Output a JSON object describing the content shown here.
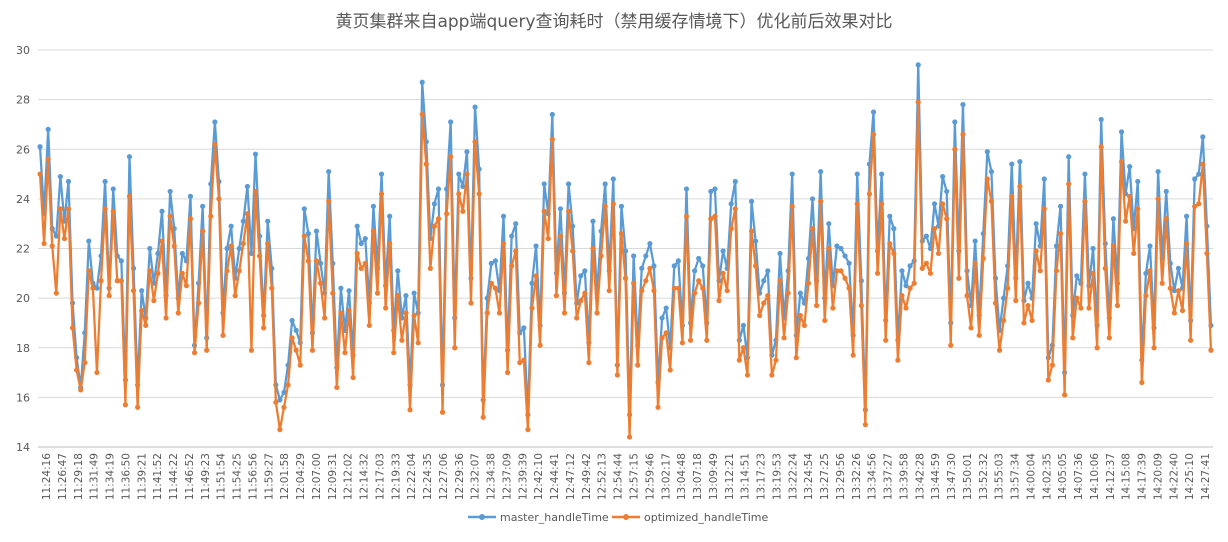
{
  "chart_data": {
    "type": "line",
    "title": "黄页集群来自app端query查询耗时（禁用缓存情境下）优化前后效果对比",
    "xlabel": "",
    "ylabel": "",
    "ylim": [
      14,
      30
    ],
    "y_ticks": [
      "14",
      "16",
      "18",
      "20",
      "22",
      "24",
      "26",
      "28",
      "30"
    ],
    "grid": "horizontal",
    "legend_position": "bottom",
    "x_tick_labels": [
      "11:24:16",
      "11:26:47",
      "11:29:18",
      "11:31:49",
      "11:34:19",
      "11:36:50",
      "11:39:21",
      "11:41:52",
      "11:44:22",
      "11:46:52",
      "11:49:23",
      "11:51:54",
      "11:54:25",
      "11:56:56",
      "11:59:27",
      "12:01:58",
      "12:04:29",
      "12:07:00",
      "12:09:31",
      "12:12:02",
      "12:14:32",
      "12:17:03",
      "12:19:33",
      "12:22:04",
      "12:24:35",
      "12:27:06",
      "12:29:36",
      "12:32:07",
      "12:34:38",
      "12:37:09",
      "12:39:39",
      "12:42:10",
      "12:44:41",
      "12:47:12",
      "12:49:42",
      "12:52:13",
      "12:54:44",
      "12:57:15",
      "12:59:46",
      "13:02:17",
      "13:04:48",
      "13:07:18",
      "13:09:49",
      "13:12:21",
      "13:14:51",
      "13:17:23",
      "13:19:53",
      "13:22:24",
      "13:24:54",
      "13:27:25",
      "13:29:56",
      "13:32:26",
      "13:34:56",
      "13:37:27",
      "13:39:58",
      "13:42:28",
      "13:44:59",
      "13:47:30",
      "13:50:01",
      "13:52:32",
      "13:55:03",
      "13:57:34",
      "14:00:04",
      "14:02:35",
      "14:05:05",
      "14:07:36",
      "14:10:06",
      "14:12:37",
      "14:15:08",
      "14:17:39",
      "14:20:09",
      "14:22:40",
      "14:25:10",
      "14:27:41"
    ],
    "series": [
      {
        "name": "master_handleTime",
        "color": "#5B9BD5",
        "values": [
          26.1,
          23.4,
          26.8,
          22.8,
          22.5,
          24.9,
          23.1,
          24.7,
          19.8,
          17.6,
          16.4,
          18.6,
          22.3,
          20.6,
          20.4,
          21.7,
          24.7,
          20.4,
          24.4,
          21.7,
          21.5,
          16.7,
          25.7,
          21.2,
          16.5,
          20.3,
          19.2,
          22.0,
          20.6,
          21.8,
          23.5,
          20.1,
          24.3,
          22.8,
          20.0,
          21.8,
          21.5,
          24.1,
          18.1,
          20.6,
          23.7,
          18.4,
          24.6,
          27.1,
          24.7,
          19.4,
          22.0,
          22.9,
          20.8,
          22.0,
          23.1,
          24.5,
          21.8,
          25.8,
          22.5,
          19.3,
          23.1,
          21.2,
          16.5,
          15.9,
          16.2,
          17.3,
          19.1,
          18.7,
          18.2,
          23.6,
          22.6,
          18.6,
          22.7,
          21.4,
          20.2,
          25.1,
          21.4,
          17.2,
          20.4,
          18.7,
          20.3,
          17.7,
          22.9,
          22.2,
          22.4,
          19.8,
          23.7,
          21.2,
          25.0,
          20.5,
          23.3,
          18.7,
          21.1,
          19.2,
          20.1,
          16.5,
          20.2,
          19.4,
          28.7,
          26.3,
          22.4,
          23.8,
          24.4,
          16.5,
          24.4,
          27.1,
          19.2,
          25.0,
          24.5,
          25.9,
          20.8,
          27.7,
          25.2,
          15.9,
          20.0,
          21.4,
          21.5,
          20.3,
          23.3,
          17.9,
          22.5,
          23.0,
          18.6,
          18.8,
          15.3,
          20.6,
          22.1,
          18.9,
          24.6,
          23.4,
          27.4,
          21.0,
          23.6,
          20.2,
          24.6,
          22.9,
          19.8,
          20.9,
          21.1,
          18.2,
          23.1,
          20.2,
          22.7,
          24.6,
          21.1,
          24.8,
          17.3,
          23.7,
          21.9,
          15.3,
          21.7,
          18.1,
          21.2,
          21.7,
          22.2,
          21.3,
          16.6,
          19.2,
          19.6,
          18.0,
          21.3,
          21.5,
          18.9,
          24.4,
          19.0,
          21.1,
          21.6,
          21.3,
          19.0,
          24.3,
          24.4,
          20.7,
          21.9,
          21.2,
          23.8,
          24.7,
          18.3,
          18.9,
          17.6,
          23.9,
          22.3,
          20.2,
          20.7,
          21.1,
          17.7,
          18.3,
          21.8,
          19.2,
          21.1,
          25.0,
          18.5,
          20.2,
          19.8,
          21.6,
          24.0,
          20.7,
          25.1,
          20.0,
          23.0,
          20.5,
          22.1,
          22.0,
          21.7,
          21.4,
          18.5,
          25.0,
          20.7,
          15.5,
          25.4,
          27.5,
          21.9,
          25.0,
          19.1,
          23.3,
          22.8,
          18.3,
          21.1,
          20.5,
          21.3,
          21.5,
          29.4,
          22.3,
          22.5,
          22.0,
          23.8,
          22.9,
          24.9,
          24.3,
          19.0,
          27.1,
          21.9,
          27.8,
          21.1,
          19.7,
          22.3,
          19.3,
          22.6,
          25.9,
          25.1,
          20.8,
          18.7,
          20.0,
          21.3,
          25.4,
          20.8,
          25.5,
          19.9,
          20.6,
          20.0,
          23.0,
          22.1,
          24.8,
          17.6,
          18.1,
          22.1,
          23.7,
          17.0,
          25.7,
          19.3,
          20.9,
          20.6,
          25.0,
          20.5,
          22.0,
          18.9,
          27.2,
          22.2,
          19.2,
          23.2,
          20.6,
          26.7,
          24.2,
          25.3,
          22.8,
          24.7,
          17.5,
          21.0,
          22.1,
          18.8,
          25.1,
          21.6,
          24.3,
          21.4,
          20.3,
          21.2,
          20.4,
          23.3,
          19.1,
          24.8,
          25.0,
          26.5,
          22.9,
          18.9
        ],
        "last_value_note": ""
      },
      {
        "name": "optimized_handleTime",
        "color": "#ED7D31",
        "values": [
          25.0,
          22.2,
          25.6,
          22.1,
          20.2,
          23.6,
          22.4,
          23.6,
          18.8,
          17.1,
          16.3,
          17.4,
          21.1,
          20.4,
          17.0,
          20.7,
          23.6,
          20.1,
          23.5,
          20.7,
          20.7,
          15.7,
          24.1,
          20.3,
          15.6,
          19.5,
          18.9,
          21.1,
          19.9,
          21.0,
          22.3,
          19.2,
          23.3,
          22.1,
          19.4,
          21.0,
          20.5,
          23.2,
          17.8,
          19.8,
          22.7,
          17.9,
          23.3,
          26.2,
          24.0,
          18.5,
          21.1,
          22.1,
          20.1,
          21.1,
          22.2,
          23.4,
          17.9,
          24.3,
          21.7,
          18.8,
          22.2,
          20.4,
          15.8,
          14.7,
          15.6,
          16.5,
          18.4,
          17.9,
          17.3,
          22.5,
          21.5,
          17.9,
          21.5,
          20.6,
          19.2,
          23.9,
          20.2,
          16.4,
          19.4,
          17.8,
          19.5,
          16.8,
          21.8,
          21.2,
          21.4,
          18.9,
          22.7,
          20.2,
          24.2,
          19.6,
          22.2,
          17.8,
          20.1,
          18.3,
          19.4,
          15.5,
          19.3,
          18.2,
          27.4,
          25.4,
          21.2,
          22.9,
          23.2,
          15.4,
          23.4,
          25.7,
          18.0,
          24.2,
          23.5,
          25.0,
          19.8,
          26.3,
          24.2,
          15.2,
          19.4,
          20.6,
          20.4,
          19.4,
          22.2,
          17.0,
          21.3,
          21.9,
          17.4,
          17.5,
          14.7,
          19.6,
          20.9,
          18.1,
          23.5,
          22.4,
          26.4,
          20.1,
          22.5,
          19.4,
          23.5,
          21.9,
          19.2,
          19.9,
          20.2,
          17.4,
          22.0,
          19.4,
          21.7,
          23.7,
          20.3,
          23.8,
          16.9,
          22.6,
          20.8,
          14.4,
          20.6,
          17.3,
          20.3,
          20.7,
          21.2,
          20.3,
          15.6,
          18.4,
          18.6,
          17.1,
          20.4,
          20.4,
          18.2,
          23.3,
          18.3,
          20.2,
          20.7,
          20.4,
          18.3,
          23.2,
          23.3,
          19.9,
          21.0,
          20.3,
          22.8,
          23.6,
          17.5,
          18.0,
          16.9,
          22.7,
          21.3,
          19.3,
          19.8,
          20.1,
          16.9,
          17.5,
          20.7,
          18.4,
          20.2,
          23.7,
          17.6,
          19.3,
          18.9,
          20.6,
          22.8,
          19.7,
          23.9,
          19.1,
          22.0,
          19.6,
          21.1,
          21.1,
          20.8,
          20.4,
          17.7,
          23.8,
          19.7,
          14.9,
          24.2,
          26.6,
          21.0,
          23.8,
          18.3,
          22.2,
          21.8,
          17.5,
          20.1,
          19.6,
          20.4,
          20.6,
          27.9,
          21.2,
          21.4,
          21.0,
          22.8,
          21.8,
          23.8,
          23.2,
          18.1,
          26.0,
          20.8,
          26.6,
          20.1,
          18.8,
          21.4,
          18.5,
          21.6,
          24.8,
          23.9,
          19.8,
          17.9,
          19.1,
          20.4,
          24.1,
          19.9,
          24.5,
          19.0,
          19.7,
          19.1,
          21.9,
          21.1,
          23.6,
          16.7,
          17.3,
          21.1,
          22.6,
          16.1,
          24.6,
          18.4,
          20.0,
          19.6,
          23.9,
          19.6,
          21.0,
          18.0,
          26.1,
          21.2,
          18.4,
          22.1,
          19.7,
          25.5,
          23.1,
          24.1,
          21.8,
          23.6,
          16.6,
          20.1,
          21.1,
          18.0,
          24.0,
          20.6,
          23.2,
          20.4,
          19.4,
          20.3,
          19.5,
          22.2,
          18.3,
          23.7,
          23.8,
          25.4,
          21.8,
          17.9
        ]
      }
    ]
  },
  "legend": {
    "items": [
      "master_handleTime",
      "optimized_handleTime"
    ]
  }
}
